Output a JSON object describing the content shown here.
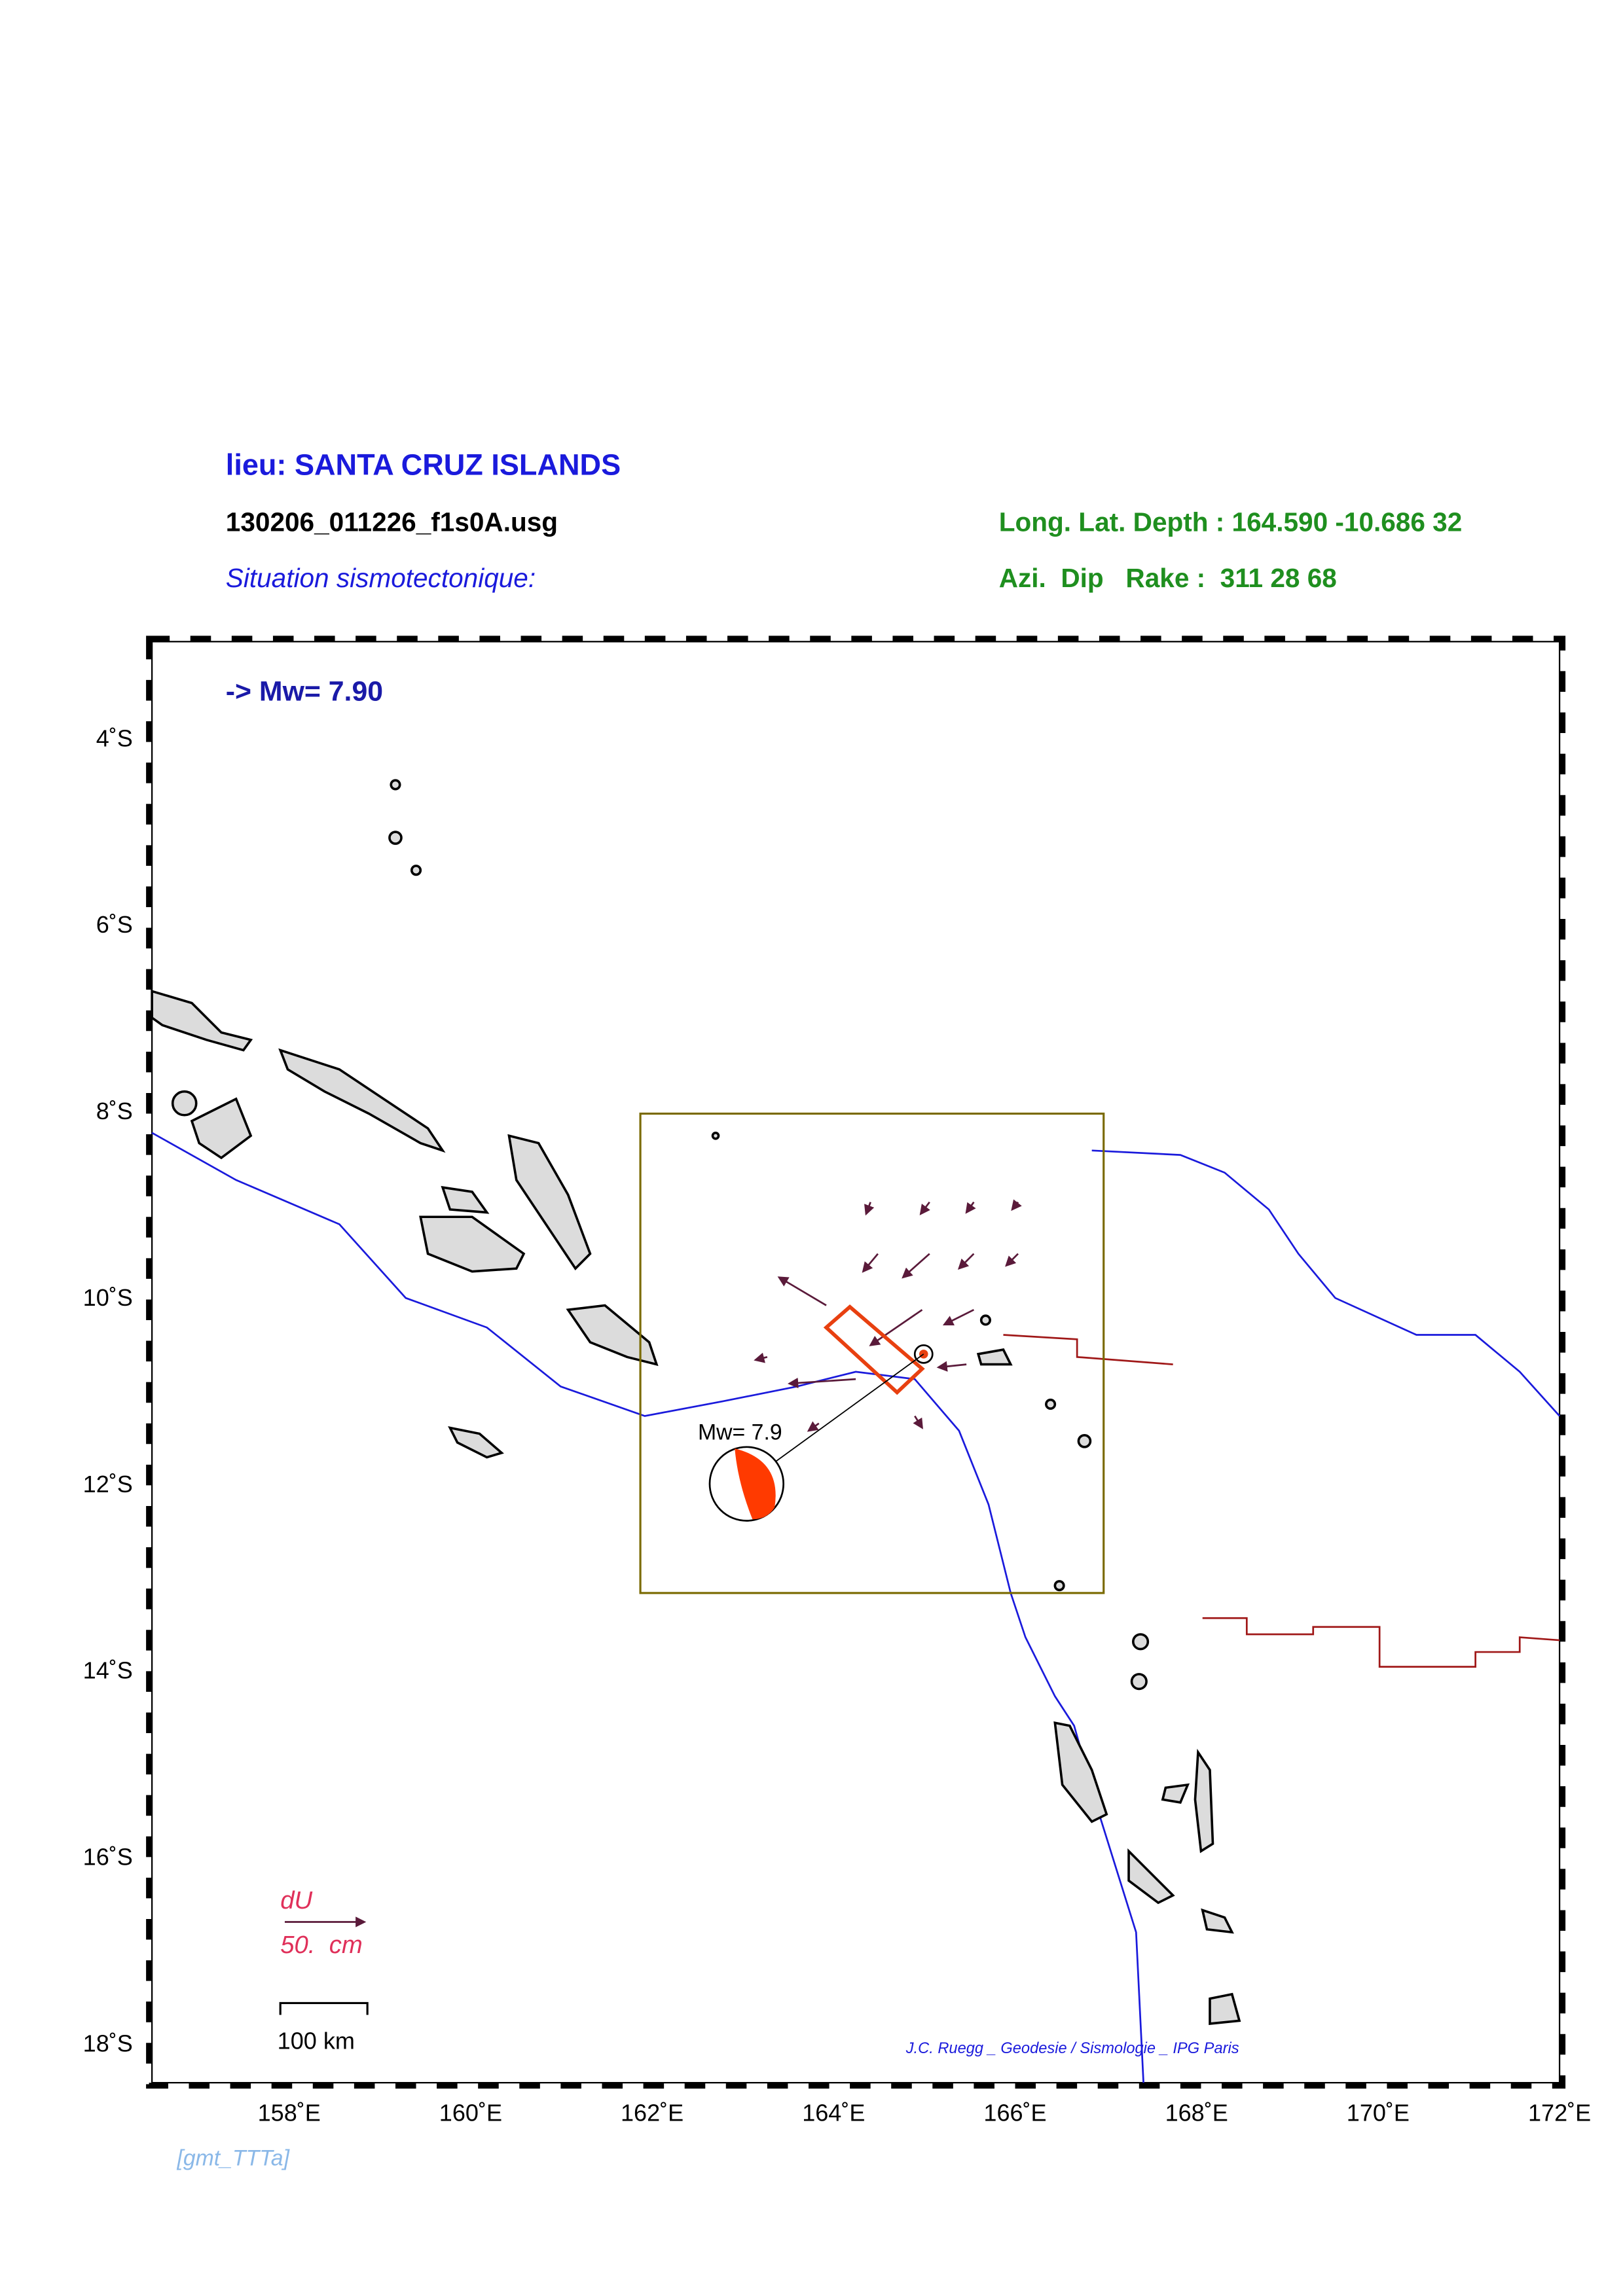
{
  "header": {
    "location": "lieu: SANTA CRUZ ISLANDS",
    "event_file": "130206_011226_f1s0A.usg",
    "section": "Situation sismotectonique:",
    "hypocenter": "Long. Lat. Depth : 164.590 -10.686 32",
    "mechanism": "Azi.  Dip   Rake :  311 28 68"
  },
  "map": {
    "magnitude_note": "-> Mw= 7.90",
    "beachball_label": "Mw= 7.9",
    "lat_ticks": [
      "4˚S",
      "6˚S",
      "8˚S",
      "10˚S",
      "12˚S",
      "14˚S",
      "16˚S",
      "18˚S"
    ],
    "lon_ticks": [
      "158˚E",
      "160˚E",
      "162˚E",
      "164˚E",
      "166˚E",
      "168˚E",
      "170˚E",
      "172˚E"
    ],
    "legend": {
      "arrow_label": "dU",
      "arrow_scale": "50.  cm",
      "scale_bar": "100 km"
    },
    "credit": "J.C. Ruegg _ Geodesie / Sismologie _ IPG Paris"
  },
  "footer": "[gmt_TTTa]"
}
